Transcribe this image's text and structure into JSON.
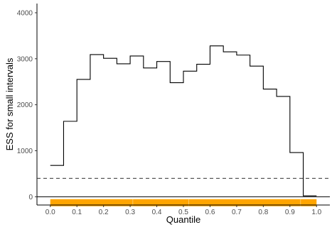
{
  "chart_data": {
    "type": "line",
    "subtype": "step",
    "xlabel": "Quantile",
    "ylabel": "ESS for small intervals",
    "xlim": [
      -0.05,
      1.05
    ],
    "ylim": [
      -180,
      4200
    ],
    "x_ticks": [
      0.0,
      0.1,
      0.2,
      0.3,
      0.4,
      0.5,
      0.6,
      0.7,
      0.8,
      0.9,
      1.0
    ],
    "x_tick_labels": [
      "0.0",
      "0.1",
      "0.2",
      "0.3",
      "0.4",
      "0.5",
      "0.6",
      "0.7",
      "0.8",
      "0.9",
      "1.0"
    ],
    "y_ticks": [
      0,
      1000,
      2000,
      3000,
      4000
    ],
    "y_tick_labels": [
      "0",
      "1000",
      "2000",
      "3000",
      "4000"
    ],
    "bin_width": 0.05,
    "series": [
      {
        "x": [
          0.0,
          0.05,
          0.1,
          0.15,
          0.2,
          0.25,
          0.3,
          0.35,
          0.4,
          0.45,
          0.5,
          0.55,
          0.6,
          0.65,
          0.7,
          0.75,
          0.8,
          0.85,
          0.9,
          0.95
        ],
        "values": [
          680,
          1640,
          2550,
          3090,
          3010,
          2890,
          3060,
          2800,
          2940,
          2480,
          2730,
          2880,
          3280,
          3150,
          3080,
          2840,
          2340,
          2180,
          960,
          20
        ]
      }
    ],
    "reference_line": {
      "y": 400,
      "style": "dashed"
    },
    "rug": {
      "y": -130,
      "color": "#FFA500",
      "from": 0.0,
      "to": 1.0
    },
    "grid": false,
    "colors": {
      "line": "#000000",
      "rug": "#FFA500",
      "axis": "#000000",
      "tick_text": "#4d4d4d"
    }
  }
}
